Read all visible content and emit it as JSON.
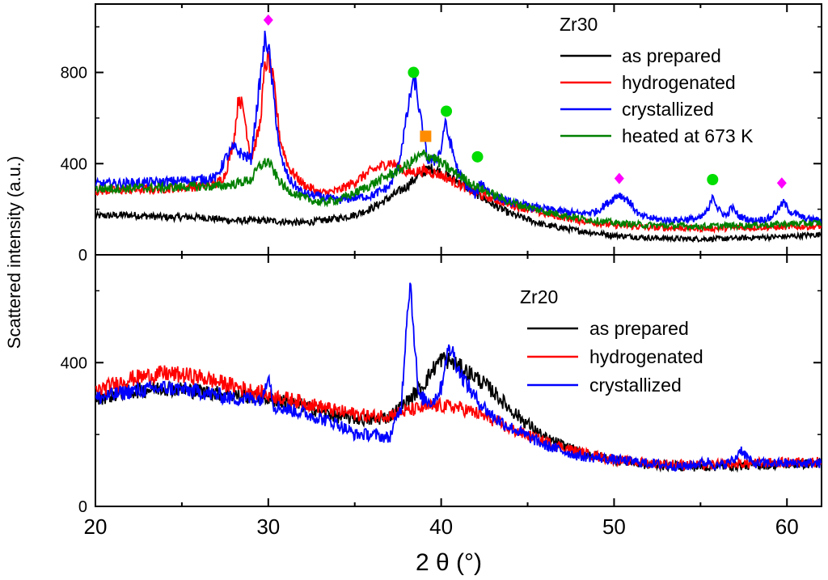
{
  "chart_data": [
    {
      "type": "line",
      "panel": "top",
      "title": "",
      "xlabel": "2 θ (°)",
      "ylabel": "Scattered intensity (a.u.)",
      "xlim": [
        20,
        62
      ],
      "ylim": [
        0,
        1100
      ],
      "yticks": [
        0,
        400,
        800
      ],
      "legend_title": "Zr30",
      "legend_position": "top-right",
      "series": [
        {
          "name": "as prepared",
          "color": "#000000",
          "x": [
            20,
            22,
            24,
            26,
            28,
            30,
            32,
            34,
            35,
            36,
            37,
            38,
            38.5,
            39,
            39.5,
            40,
            41,
            42,
            43,
            44,
            46,
            48,
            50,
            52,
            54,
            56,
            58,
            60,
            62
          ],
          "y": [
            170,
            175,
            165,
            165,
            150,
            150,
            140,
            160,
            175,
            205,
            250,
            300,
            335,
            365,
            380,
            360,
            320,
            270,
            220,
            180,
            130,
            105,
            85,
            75,
            70,
            70,
            75,
            80,
            90
          ]
        },
        {
          "name": "hydrogenated",
          "color": "#ff0000",
          "x": [
            20,
            24,
            26,
            27,
            27.5,
            28,
            28.3,
            28.6,
            29,
            29.5,
            29.8,
            30,
            30.3,
            30.7,
            31.2,
            32,
            33,
            34,
            35,
            36,
            37,
            37.5,
            38,
            39,
            40,
            41,
            42,
            44,
            46,
            48,
            50,
            52,
            55,
            58,
            62
          ],
          "y": [
            280,
            290,
            300,
            310,
            350,
            500,
            700,
            620,
            420,
            560,
            820,
            860,
            760,
            500,
            380,
            310,
            270,
            280,
            320,
            370,
            405,
            390,
            360,
            370,
            350,
            310,
            270,
            220,
            180,
            150,
            130,
            120,
            115,
            120,
            125
          ]
        },
        {
          "name": "crystallized",
          "color": "#0000ff",
          "x": [
            20,
            24,
            26,
            27,
            27.5,
            28,
            28.5,
            29,
            29.5,
            29.8,
            30,
            30.3,
            30.7,
            31.2,
            32,
            34,
            35,
            36,
            37,
            37.5,
            38,
            38.3,
            38.5,
            38.8,
            39.2,
            39.6,
            40,
            40.2,
            40.5,
            41,
            41.5,
            42,
            42.3,
            43,
            44,
            46,
            48,
            49,
            49.5,
            50,
            50.3,
            50.8,
            51.5,
            53,
            55,
            55.5,
            55.7,
            56,
            56.5,
            56.8,
            57.2,
            58,
            59,
            59.5,
            59.8,
            60.2,
            61,
            62
          ],
          "y": [
            310,
            320,
            330,
            340,
            420,
            470,
            440,
            420,
            750,
            940,
            920,
            700,
            430,
            330,
            270,
            240,
            250,
            260,
            300,
            380,
            600,
            740,
            760,
            600,
            420,
            410,
            460,
            580,
            500,
            360,
            300,
            260,
            320,
            260,
            230,
            200,
            180,
            190,
            220,
            250,
            265,
            240,
            170,
            150,
            160,
            200,
            270,
            200,
            170,
            210,
            170,
            150,
            160,
            200,
            230,
            190,
            160,
            150
          ]
        },
        {
          "name": "heated at 673 K",
          "color": "#008000",
          "x": [
            20,
            24,
            26,
            27,
            28,
            29,
            29.5,
            30,
            30.5,
            31,
            32,
            33,
            34,
            35,
            36,
            37,
            38,
            38.5,
            39,
            39.5,
            40,
            41,
            42,
            44,
            46,
            48,
            50,
            52,
            55,
            58,
            62
          ],
          "y": [
            290,
            295,
            300,
            300,
            310,
            330,
            390,
            410,
            340,
            290,
            250,
            230,
            240,
            270,
            310,
            350,
            390,
            420,
            440,
            430,
            400,
            350,
            300,
            230,
            190,
            160,
            140,
            130,
            125,
            130,
            140
          ]
        }
      ],
      "markers": [
        {
          "shape": "diamond",
          "color": "#ff00ff",
          "x": 30.0,
          "y": 1030
        },
        {
          "shape": "circle",
          "color": "#00dd00",
          "x": 38.4,
          "y": 800
        },
        {
          "shape": "square",
          "color": "#ff8c00",
          "x": 39.1,
          "y": 520
        },
        {
          "shape": "circle",
          "color": "#00dd00",
          "x": 40.3,
          "y": 630
        },
        {
          "shape": "circle",
          "color": "#00dd00",
          "x": 42.1,
          "y": 430
        },
        {
          "shape": "diamond",
          "color": "#ff00ff",
          "x": 50.3,
          "y": 335
        },
        {
          "shape": "circle",
          "color": "#00dd00",
          "x": 55.7,
          "y": 330
        },
        {
          "shape": "diamond",
          "color": "#ff00ff",
          "x": 59.7,
          "y": 315
        }
      ]
    },
    {
      "type": "line",
      "panel": "bottom",
      "title": "",
      "xlabel": "2 θ (°)",
      "ylabel": "Scattered intensity (a.u.)",
      "xlim": [
        20,
        62
      ],
      "xticks": [
        20,
        30,
        40,
        50,
        60
      ],
      "ylim": [
        0,
        700
      ],
      "yticks": [
        0,
        400
      ],
      "legend_title": "Zr20",
      "legend_position": "right",
      "series": [
        {
          "name": "as prepared",
          "color": "#000000",
          "x": [
            20,
            22,
            24,
            26,
            28,
            30,
            32,
            34,
            36,
            37,
            38,
            39,
            39.5,
            40,
            40.5,
            41,
            42,
            43,
            44,
            45,
            46,
            48,
            50,
            52,
            55,
            58,
            62
          ],
          "y": [
            300,
            320,
            330,
            320,
            310,
            300,
            280,
            250,
            240,
            250,
            290,
            340,
            380,
            410,
            405,
            390,
            360,
            320,
            270,
            230,
            190,
            150,
            130,
            115,
            110,
            115,
            120
          ]
        },
        {
          "name": "hydrogenated",
          "color": "#ff0000",
          "x": [
            20,
            22,
            24,
            26,
            28,
            30,
            32,
            34,
            36,
            37,
            38,
            39,
            40,
            41,
            42,
            43,
            44,
            46,
            48,
            50,
            52,
            55,
            58,
            62
          ],
          "y": [
            320,
            355,
            370,
            360,
            335,
            310,
            290,
            265,
            250,
            255,
            265,
            275,
            280,
            275,
            260,
            240,
            215,
            180,
            150,
            130,
            120,
            115,
            120,
            125
          ]
        },
        {
          "name": "crystallized",
          "color": "#0000ff",
          "x": [
            20,
            22,
            24,
            26,
            28,
            29.7,
            30,
            30.3,
            32,
            34,
            35,
            36,
            37,
            37.7,
            38.0,
            38.2,
            38.4,
            38.7,
            39.0,
            39.5,
            40,
            40.3,
            40.6,
            41,
            42,
            43,
            44,
            46,
            48,
            50,
            52,
            54,
            55.5,
            56,
            57,
            57.3,
            58,
            62
          ],
          "y": [
            300,
            320,
            330,
            320,
            300,
            300,
            380,
            280,
            260,
            230,
            200,
            200,
            190,
            280,
            520,
            630,
            500,
            300,
            300,
            290,
            330,
            420,
            440,
            380,
            300,
            250,
            220,
            170,
            140,
            130,
            120,
            110,
            125,
            110,
            130,
            160,
            120,
            120
          ]
        }
      ],
      "markers": []
    }
  ]
}
